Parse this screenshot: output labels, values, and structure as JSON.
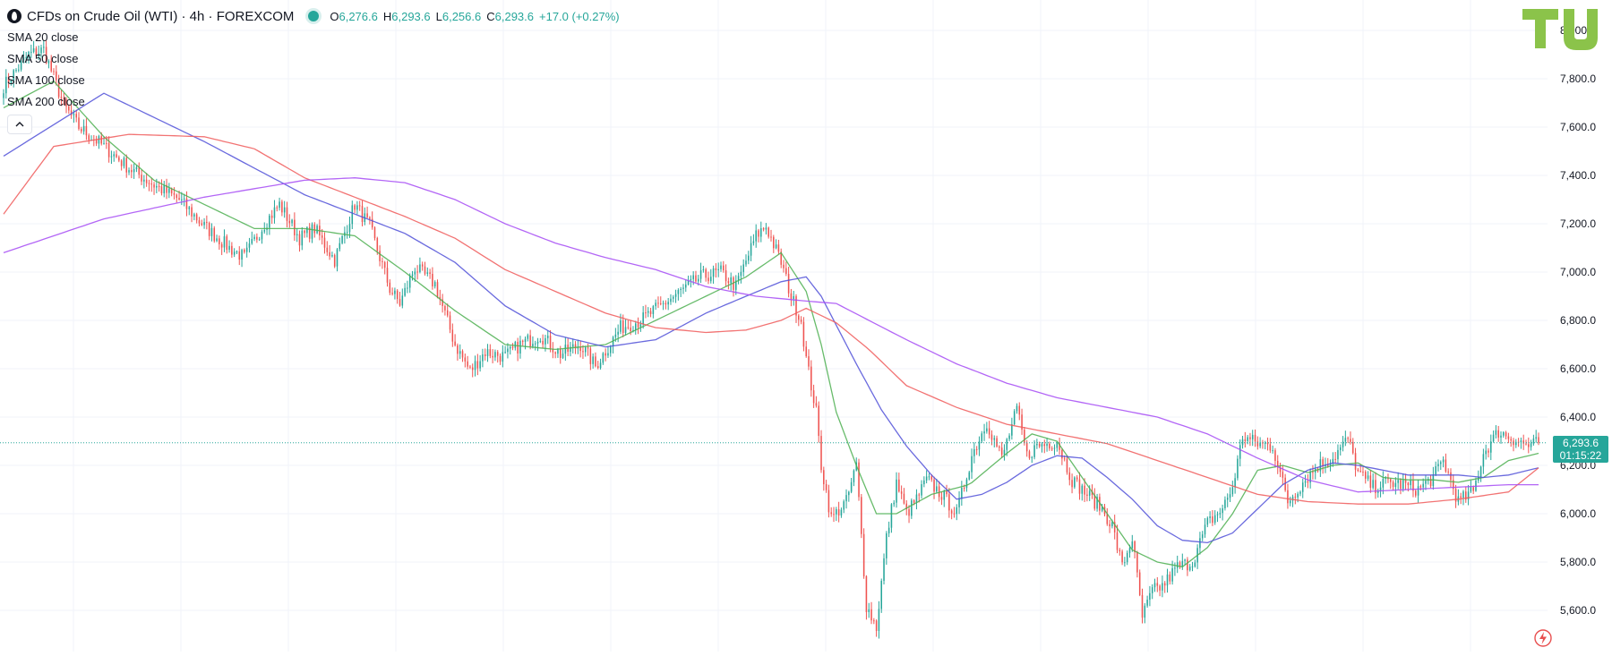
{
  "legend": {
    "title": "CFDs on Crude Oil (WTI) · 4h · FOREXCOM",
    "ohlc": [
      {
        "key": "O",
        "value": "6,276.6"
      },
      {
        "key": "H",
        "value": "6,293.6"
      },
      {
        "key": "L",
        "value": "6,256.6"
      },
      {
        "key": "C",
        "value": "6,293.6"
      }
    ],
    "change": "+17.0 (+0.27%)",
    "indicators": [
      "SMA 20 close",
      "SMA 50 close",
      "SMA 100 close",
      "SMA 200 close"
    ],
    "collapse_icon": "chevron-up-icon"
  },
  "last_price": {
    "price": "6,293.6",
    "countdown": "01:15:22"
  },
  "colors": {
    "up": "#26a69a",
    "down": "#ef5350",
    "sma20": "#4caf50",
    "sma50": "#5050d8",
    "sma100": "#f05a5a",
    "sma200": "#a64bf4",
    "price_line": "#26a69a"
  },
  "icons": {
    "logo": "tradingview-logo",
    "alert": "lightning-icon"
  },
  "chart_data": {
    "type": "candlestick",
    "timeframe": "4h",
    "ylim": [
      5480,
      8100
    ],
    "y_ticks": [
      5600,
      5800,
      6000,
      6200,
      6400,
      6600,
      6800,
      7000,
      7200,
      7400,
      7600,
      7800,
      8000
    ],
    "y_tick_labels": [
      "5,600.0",
      "5,800.0",
      "6,000.0",
      "6,200.0",
      "6,400.0",
      "6,600.0",
      "6,800.0",
      "7,000.0",
      "7,200.0",
      "7,400.0",
      "7,600.0",
      "7,800.0",
      "8,000.0"
    ],
    "last_price": 6293.6,
    "grid": true,
    "close_path": [
      [
        0,
        7770
      ],
      [
        10,
        7900
      ],
      [
        16,
        7920
      ],
      [
        24,
        7690
      ],
      [
        30,
        7600
      ],
      [
        40,
        7520
      ],
      [
        50,
        7430
      ],
      [
        60,
        7360
      ],
      [
        70,
        7300
      ],
      [
        80,
        7190
      ],
      [
        90,
        7100
      ],
      [
        96,
        7060
      ],
      [
        104,
        7200
      ],
      [
        110,
        7280
      ],
      [
        118,
        7140
      ],
      [
        124,
        7180
      ],
      [
        132,
        7050
      ],
      [
        140,
        7280
      ],
      [
        146,
        7190
      ],
      [
        154,
        6930
      ],
      [
        158,
        6870
      ],
      [
        164,
        7020
      ],
      [
        172,
        6950
      ],
      [
        180,
        6700
      ],
      [
        186,
        6590
      ],
      [
        192,
        6670
      ],
      [
        200,
        6650
      ],
      [
        206,
        6700
      ],
      [
        214,
        6740
      ],
      [
        222,
        6660
      ],
      [
        230,
        6700
      ],
      [
        236,
        6610
      ],
      [
        246,
        6770
      ],
      [
        254,
        6800
      ],
      [
        262,
        6860
      ],
      [
        270,
        6920
      ],
      [
        278,
        6980
      ],
      [
        286,
        7000
      ],
      [
        292,
        6940
      ],
      [
        300,
        7150
      ],
      [
        304,
        7190
      ],
      [
        310,
        7040
      ],
      [
        314,
        6900
      ],
      [
        318,
        6800
      ],
      [
        320,
        6640
      ],
      [
        324,
        6420
      ],
      [
        326,
        6200
      ],
      [
        330,
        5980
      ],
      [
        336,
        6050
      ],
      [
        340,
        6200
      ],
      [
        344,
        5620
      ],
      [
        348,
        5530
      ],
      [
        352,
        5900
      ],
      [
        356,
        6130
      ],
      [
        360,
        6000
      ],
      [
        364,
        6060
      ],
      [
        368,
        6140
      ],
      [
        374,
        6080
      ],
      [
        380,
        6000
      ],
      [
        386,
        6240
      ],
      [
        392,
        6380
      ],
      [
        398,
        6230
      ],
      [
        404,
        6430
      ],
      [
        408,
        6240
      ],
      [
        412,
        6280
      ],
      [
        420,
        6300
      ],
      [
        426,
        6140
      ],
      [
        432,
        6080
      ],
      [
        438,
        6020
      ],
      [
        442,
        5950
      ],
      [
        446,
        5780
      ],
      [
        450,
        5900
      ],
      [
        454,
        5570
      ],
      [
        458,
        5680
      ],
      [
        462,
        5700
      ],
      [
        468,
        5780
      ],
      [
        474,
        5800
      ],
      [
        480,
        5960
      ],
      [
        486,
        6020
      ],
      [
        490,
        6110
      ],
      [
        494,
        6320
      ],
      [
        500,
        6290
      ],
      [
        506,
        6280
      ],
      [
        512,
        6050
      ],
      [
        518,
        6130
      ],
      [
        524,
        6200
      ],
      [
        530,
        6230
      ],
      [
        536,
        6310
      ],
      [
        540,
        6170
      ],
      [
        546,
        6110
      ],
      [
        552,
        6130
      ],
      [
        558,
        6120
      ],
      [
        564,
        6100
      ],
      [
        570,
        6150
      ],
      [
        574,
        6220
      ],
      [
        580,
        6050
      ],
      [
        586,
        6090
      ],
      [
        590,
        6250
      ],
      [
        596,
        6340
      ],
      [
        600,
        6320
      ],
      [
        604,
        6300
      ],
      [
        608,
        6280
      ],
      [
        612,
        6293.6
      ]
    ],
    "series": [
      {
        "name": "SMA 20 close",
        "values": [
          [
            0,
            7680
          ],
          [
            20,
            7790
          ],
          [
            40,
            7560
          ],
          [
            60,
            7380
          ],
          [
            80,
            7280
          ],
          [
            100,
            7180
          ],
          [
            120,
            7180
          ],
          [
            140,
            7150
          ],
          [
            160,
            7000
          ],
          [
            180,
            6840
          ],
          [
            200,
            6700
          ],
          [
            220,
            6680
          ],
          [
            240,
            6700
          ],
          [
            260,
            6800
          ],
          [
            280,
            6900
          ],
          [
            296,
            6980
          ],
          [
            310,
            7080
          ],
          [
            320,
            6920
          ],
          [
            326,
            6700
          ],
          [
            332,
            6420
          ],
          [
            340,
            6200
          ],
          [
            348,
            6000
          ],
          [
            356,
            6000
          ],
          [
            370,
            6080
          ],
          [
            385,
            6120
          ],
          [
            400,
            6250
          ],
          [
            410,
            6330
          ],
          [
            420,
            6300
          ],
          [
            430,
            6150
          ],
          [
            440,
            6000
          ],
          [
            450,
            5850
          ],
          [
            460,
            5800
          ],
          [
            470,
            5780
          ],
          [
            480,
            5860
          ],
          [
            490,
            6000
          ],
          [
            500,
            6180
          ],
          [
            510,
            6200
          ],
          [
            520,
            6170
          ],
          [
            530,
            6200
          ],
          [
            540,
            6210
          ],
          [
            550,
            6150
          ],
          [
            560,
            6140
          ],
          [
            570,
            6140
          ],
          [
            580,
            6130
          ],
          [
            590,
            6150
          ],
          [
            600,
            6220
          ],
          [
            612,
            6250
          ]
        ]
      },
      {
        "name": "SMA 50 close",
        "values": [
          [
            0,
            7480
          ],
          [
            40,
            7740
          ],
          [
            80,
            7540
          ],
          [
            120,
            7320
          ],
          [
            160,
            7160
          ],
          [
            180,
            7040
          ],
          [
            200,
            6860
          ],
          [
            220,
            6740
          ],
          [
            240,
            6690
          ],
          [
            260,
            6720
          ],
          [
            280,
            6830
          ],
          [
            296,
            6900
          ],
          [
            310,
            6960
          ],
          [
            320,
            6980
          ],
          [
            326,
            6900
          ],
          [
            332,
            6780
          ],
          [
            340,
            6620
          ],
          [
            350,
            6430
          ],
          [
            360,
            6280
          ],
          [
            370,
            6160
          ],
          [
            380,
            6060
          ],
          [
            390,
            6080
          ],
          [
            400,
            6130
          ],
          [
            410,
            6200
          ],
          [
            420,
            6240
          ],
          [
            430,
            6230
          ],
          [
            440,
            6150
          ],
          [
            450,
            6060
          ],
          [
            460,
            5950
          ],
          [
            470,
            5890
          ],
          [
            480,
            5880
          ],
          [
            490,
            5920
          ],
          [
            500,
            6020
          ],
          [
            510,
            6120
          ],
          [
            520,
            6180
          ],
          [
            530,
            6210
          ],
          [
            540,
            6200
          ],
          [
            550,
            6180
          ],
          [
            560,
            6160
          ],
          [
            570,
            6160
          ],
          [
            580,
            6160
          ],
          [
            590,
            6150
          ],
          [
            600,
            6160
          ],
          [
            612,
            6190
          ]
        ]
      },
      {
        "name": "SMA 100 close",
        "values": [
          [
            0,
            7240
          ],
          [
            20,
            7520
          ],
          [
            50,
            7570
          ],
          [
            80,
            7560
          ],
          [
            100,
            7510
          ],
          [
            120,
            7390
          ],
          [
            140,
            7310
          ],
          [
            160,
            7230
          ],
          [
            180,
            7140
          ],
          [
            200,
            7010
          ],
          [
            220,
            6920
          ],
          [
            240,
            6830
          ],
          [
            260,
            6770
          ],
          [
            280,
            6750
          ],
          [
            296,
            6760
          ],
          [
            310,
            6800
          ],
          [
            320,
            6850
          ],
          [
            332,
            6790
          ],
          [
            345,
            6680
          ],
          [
            360,
            6530
          ],
          [
            380,
            6440
          ],
          [
            400,
            6370
          ],
          [
            420,
            6330
          ],
          [
            440,
            6290
          ],
          [
            460,
            6220
          ],
          [
            480,
            6150
          ],
          [
            500,
            6080
          ],
          [
            520,
            6050
          ],
          [
            540,
            6040
          ],
          [
            560,
            6040
          ],
          [
            580,
            6060
          ],
          [
            600,
            6090
          ],
          [
            612,
            6190
          ]
        ]
      },
      {
        "name": "SMA 200 close",
        "values": [
          [
            0,
            7080
          ],
          [
            40,
            7220
          ],
          [
            80,
            7310
          ],
          [
            120,
            7380
          ],
          [
            140,
            7390
          ],
          [
            160,
            7370
          ],
          [
            180,
            7300
          ],
          [
            200,
            7200
          ],
          [
            220,
            7120
          ],
          [
            240,
            7060
          ],
          [
            260,
            7010
          ],
          [
            280,
            6940
          ],
          [
            300,
            6900
          ],
          [
            320,
            6880
          ],
          [
            332,
            6870
          ],
          [
            345,
            6800
          ],
          [
            360,
            6720
          ],
          [
            380,
            6620
          ],
          [
            400,
            6540
          ],
          [
            420,
            6480
          ],
          [
            440,
            6440
          ],
          [
            460,
            6400
          ],
          [
            480,
            6330
          ],
          [
            500,
            6230
          ],
          [
            520,
            6140
          ],
          [
            540,
            6090
          ],
          [
            560,
            6100
          ],
          [
            580,
            6110
          ],
          [
            600,
            6120
          ],
          [
            612,
            6120
          ]
        ]
      }
    ]
  }
}
